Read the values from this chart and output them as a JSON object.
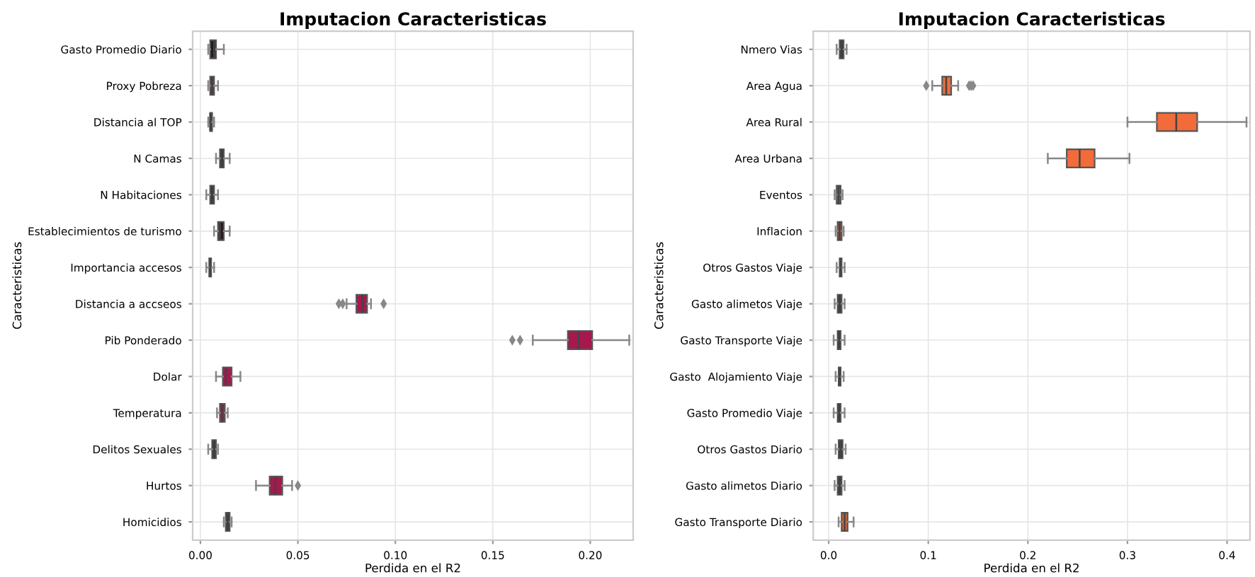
{
  "chart_data": [
    {
      "type": "box",
      "orientation": "horizontal",
      "title": "Imputacion Caracteristicas",
      "xlabel": "Perdida en el R2",
      "ylabel": "Caracteristicas",
      "grid": true,
      "categories": [
        "Gasto Promedio Diario",
        "Proxy Pobreza",
        "Distancia al TOP",
        "N Camas",
        "N Habitaciones",
        "Establecimientos de turismo",
        "Importancia accesos",
        "Distancia a accseos",
        "Pib Ponderado",
        "Dolar",
        "Temperatura",
        "Delitos Sexuales",
        "Hurtos",
        "Homicidios"
      ],
      "colors": [
        "#2a1a22",
        "#6b2a44",
        "#2a1a22",
        "#2a1a22",
        "#2a1a22",
        "#2a1a22",
        "#2a1a22",
        "#a8174e",
        "#a8174e",
        "#a8174e",
        "#a8174e",
        "#2a1a22",
        "#a8174e",
        "#2a1a22"
      ],
      "boxes": [
        {
          "low": 0.004,
          "q1": 0.005,
          "median": 0.007,
          "q3": 0.008,
          "high": 0.012
        },
        {
          "low": 0.004,
          "q1": 0.005,
          "median": 0.006,
          "q3": 0.007,
          "high": 0.009
        },
        {
          "low": 0.004,
          "q1": 0.005,
          "median": 0.005,
          "q3": 0.006,
          "high": 0.007
        },
        {
          "low": 0.008,
          "q1": 0.01,
          "median": 0.011,
          "q3": 0.012,
          "high": 0.015
        },
        {
          "low": 0.003,
          "q1": 0.005,
          "median": 0.006,
          "q3": 0.007,
          "high": 0.009
        },
        {
          "low": 0.007,
          "q1": 0.009,
          "median": 0.01,
          "q3": 0.012,
          "high": 0.015
        },
        {
          "low": 0.003,
          "q1": 0.0045,
          "median": 0.005,
          "q3": 0.0055,
          "high": 0.007
        },
        {
          "low": 0.075,
          "q1": 0.08,
          "median": 0.083,
          "q3": 0.0855,
          "high": 0.0875,
          "outliers": [
            0.071,
            0.073,
            0.094
          ]
        },
        {
          "low": 0.1705,
          "q1": 0.1885,
          "median": 0.194,
          "q3": 0.201,
          "high": 0.22,
          "outliers": [
            0.16,
            0.164
          ]
        },
        {
          "low": 0.008,
          "q1": 0.0115,
          "median": 0.013,
          "q3": 0.016,
          "high": 0.0205
        },
        {
          "low": 0.0085,
          "q1": 0.01,
          "median": 0.011,
          "q3": 0.0125,
          "high": 0.014
        },
        {
          "low": 0.004,
          "q1": 0.006,
          "median": 0.007,
          "q3": 0.008,
          "high": 0.009
        },
        {
          "low": 0.0285,
          "q1": 0.0355,
          "median": 0.0385,
          "q3": 0.042,
          "high": 0.047,
          "outliers": [
            0.05
          ]
        },
        {
          "low": 0.012,
          "q1": 0.013,
          "median": 0.014,
          "q3": 0.015,
          "high": 0.016
        }
      ],
      "xlim": [
        -0.004,
        0.222
      ],
      "xticks": [
        {
          "value": 0,
          "label": "0.00"
        },
        {
          "value": 0.05,
          "label": "0.05"
        },
        {
          "value": 0.1,
          "label": "0.10"
        },
        {
          "value": 0.15,
          "label": "0.15"
        },
        {
          "value": 0.2,
          "label": "0.20"
        }
      ]
    },
    {
      "type": "box",
      "orientation": "horizontal",
      "title": "Imputacion Caracteristicas",
      "xlabel": "Perdida en el R2",
      "ylabel": "Caracteristicas",
      "grid": true,
      "categories": [
        "Nmero Vias",
        "Area Agua",
        "Area Rural",
        "Area Urbana",
        "Eventos",
        "Inflacion",
        "Otros Gastos Viaje",
        "Gasto alimetos Viaje",
        "Gasto Transporte Viaje",
        "Gasto  Alojamiento Viaje",
        "Gasto Promedio Viaje",
        "Otros Gastos Diario",
        "Gasto alimetos Diario",
        "Gasto Transporte Diario"
      ],
      "colors": [
        "#3a2a2a",
        "#f26b3a",
        "#f26b3a",
        "#f26b3a",
        "#c8462a",
        "#c8462a",
        "#3a2a2a",
        "#3a2a2a",
        "#3a2a2a",
        "#3a2a2a",
        "#3a2a2a",
        "#3a2a2a",
        "#3a2a2a",
        "#e0622f"
      ],
      "boxes": [
        {
          "low": 0.008,
          "q1": 0.011,
          "median": 0.013,
          "q3": 0.015,
          "high": 0.018
        },
        {
          "low": 0.104,
          "q1": 0.114,
          "median": 0.118,
          "q3": 0.123,
          "high": 0.13,
          "outliers": [
            0.098,
            0.141,
            0.143,
            0.145
          ]
        },
        {
          "low": 0.3,
          "q1": 0.3295,
          "median": 0.349,
          "q3": 0.37,
          "high": 0.4195
        },
        {
          "low": 0.22,
          "q1": 0.239,
          "median": 0.252,
          "q3": 0.267,
          "high": 0.302
        },
        {
          "low": 0.006,
          "q1": 0.008,
          "median": 0.01,
          "q3": 0.012,
          "high": 0.014
        },
        {
          "low": 0.007,
          "q1": 0.009,
          "median": 0.011,
          "q3": 0.013,
          "high": 0.015
        },
        {
          "low": 0.008,
          "q1": 0.011,
          "median": 0.012,
          "q3": 0.013,
          "high": 0.016
        },
        {
          "low": 0.006,
          "q1": 0.009,
          "median": 0.011,
          "q3": 0.013,
          "high": 0.016
        },
        {
          "low": 0.005,
          "q1": 0.009,
          "median": 0.01,
          "q3": 0.012,
          "high": 0.016
        },
        {
          "low": 0.007,
          "q1": 0.01,
          "median": 0.011,
          "q3": 0.012,
          "high": 0.015
        },
        {
          "low": 0.005,
          "q1": 0.009,
          "median": 0.01,
          "q3": 0.012,
          "high": 0.016
        },
        {
          "low": 0.007,
          "q1": 0.01,
          "median": 0.012,
          "q3": 0.014,
          "high": 0.017
        },
        {
          "low": 0.006,
          "q1": 0.009,
          "median": 0.011,
          "q3": 0.013,
          "high": 0.016
        },
        {
          "low": 0.01,
          "q1": 0.013,
          "median": 0.016,
          "q3": 0.019,
          "high": 0.025
        }
      ],
      "xlim": [
        -0.0155,
        0.423
      ],
      "xticks": [
        {
          "value": 0,
          "label": "0.0"
        },
        {
          "value": 0.1,
          "label": "0.1"
        },
        {
          "value": 0.2,
          "label": "0.2"
        },
        {
          "value": 0.3,
          "label": "0.3"
        },
        {
          "value": 0.4,
          "label": "0.4"
        }
      ]
    }
  ]
}
